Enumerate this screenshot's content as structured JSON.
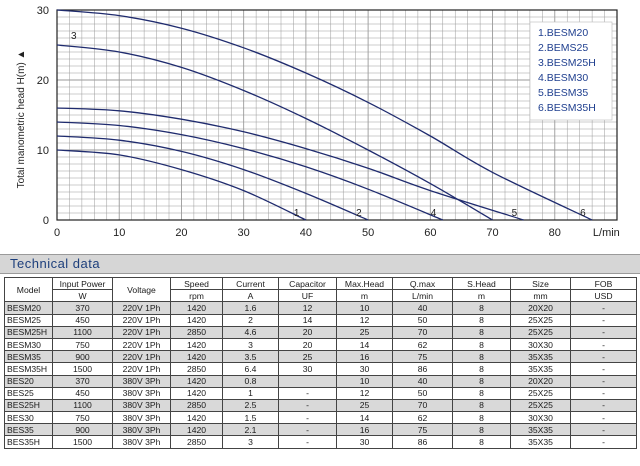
{
  "chart_data": {
    "type": "line",
    "xlabel": "L/min",
    "ylabel": "Total manometric head H(m)",
    "xlim": [
      0,
      90
    ],
    "ylim": [
      0,
      30
    ],
    "x_ticks": [
      0,
      10,
      20,
      30,
      40,
      50,
      60,
      70,
      80
    ],
    "y_ticks": [
      0,
      10,
      20,
      30
    ],
    "grid": true,
    "legend_position": "top-right",
    "legend": [
      "1.BESM20",
      "2.BEMS25",
      "3.BESM25H",
      "4.BESM30",
      "5.BESM35",
      "6.BESM35H"
    ],
    "series": [
      {
        "name": "1",
        "x": [
          0,
          10,
          20,
          30,
          40
        ],
        "y": [
          10,
          9.3,
          7.2,
          4.2,
          0
        ]
      },
      {
        "name": "2",
        "x": [
          0,
          10,
          20,
          30,
          40,
          50
        ],
        "y": [
          12,
          11.4,
          9.8,
          7.2,
          3.8,
          0
        ]
      },
      {
        "name": "3",
        "x": [
          0,
          10,
          20,
          30,
          40,
          50,
          60,
          70
        ],
        "y": [
          25,
          24,
          21.8,
          18.5,
          14.5,
          10,
          5.2,
          0
        ]
      },
      {
        "name": "4",
        "x": [
          0,
          10,
          20,
          30,
          40,
          50,
          62
        ],
        "y": [
          14,
          13.5,
          12.2,
          10.2,
          7.6,
          4.4,
          0
        ]
      },
      {
        "name": "5",
        "x": [
          0,
          10,
          20,
          30,
          40,
          50,
          60,
          75
        ],
        "y": [
          16,
          15.6,
          14.4,
          12.6,
          10.2,
          7.4,
          4.2,
          0
        ]
      },
      {
        "name": "6",
        "x": [
          0,
          10,
          20,
          30,
          40,
          50,
          60,
          70,
          86
        ],
        "y": [
          30,
          29.2,
          27.4,
          24.6,
          21,
          16.8,
          12,
          6.8,
          0
        ]
      }
    ]
  },
  "section_title": "Technical data",
  "table": {
    "columns": [
      {
        "label": "Model",
        "unit": ""
      },
      {
        "label": "Input Power",
        "unit": "W"
      },
      {
        "label": "Voltage",
        "unit": ""
      },
      {
        "label": "Speed",
        "unit": "rpm"
      },
      {
        "label": "Current",
        "unit": "A"
      },
      {
        "label": "Capacitor",
        "unit": "UF"
      },
      {
        "label": "Max.Head",
        "unit": "m"
      },
      {
        "label": "Q.max",
        "unit": "L/min"
      },
      {
        "label": "S.Head",
        "unit": "m"
      },
      {
        "label": "Size",
        "unit": "mm"
      },
      {
        "label": "FOB",
        "unit": "USD"
      }
    ],
    "rows": [
      [
        "BESM20",
        "370",
        "220V 1Ph",
        "1420",
        "1.6",
        "12",
        "10",
        "40",
        "8",
        "20X20",
        "-"
      ],
      [
        "BESM25",
        "450",
        "220V 1Ph",
        "1420",
        "2",
        "14",
        "12",
        "50",
        "8",
        "25X25",
        "-"
      ],
      [
        "BESM25H",
        "1100",
        "220V 1Ph",
        "2850",
        "4.6",
        "20",
        "25",
        "70",
        "8",
        "25X25",
        "-"
      ],
      [
        "BESM30",
        "750",
        "220V 1Ph",
        "1420",
        "3",
        "20",
        "14",
        "62",
        "8",
        "30X30",
        "-"
      ],
      [
        "BESM35",
        "900",
        "220V 1Ph",
        "1420",
        "3.5",
        "25",
        "16",
        "75",
        "8",
        "35X35",
        "-"
      ],
      [
        "BESM35H",
        "1500",
        "220V 1Ph",
        "2850",
        "6.4",
        "30",
        "30",
        "86",
        "8",
        "35X35",
        "-"
      ],
      [
        "BES20",
        "370",
        "380V 3Ph",
        "1420",
        "0.8",
        "",
        "10",
        "40",
        "8",
        "20X20",
        "-"
      ],
      [
        "BES25",
        "450",
        "380V 3Ph",
        "1420",
        "1",
        "-",
        "12",
        "50",
        "8",
        "25X25",
        "-"
      ],
      [
        "BES25H",
        "1100",
        "380V 3Ph",
        "2850",
        "2.5",
        "-",
        "25",
        "70",
        "8",
        "25X25",
        "-"
      ],
      [
        "BES30",
        "750",
        "380V 3Ph",
        "1420",
        "1.5",
        "-",
        "14",
        "62",
        "8",
        "30X30",
        "-"
      ],
      [
        "BES35",
        "900",
        "380V 3Ph",
        "1420",
        "2.1",
        "-",
        "16",
        "75",
        "8",
        "35X35",
        "-"
      ],
      [
        "BES35H",
        "1500",
        "380V 3Ph",
        "2850",
        "3",
        "-",
        "30",
        "86",
        "8",
        "35X35",
        "-"
      ]
    ]
  },
  "colors": {
    "curve": "#1f2b6e",
    "grid": "#9a9a9a",
    "legend_text": "#1f3f8f",
    "header_text": "#1d3f7c"
  }
}
